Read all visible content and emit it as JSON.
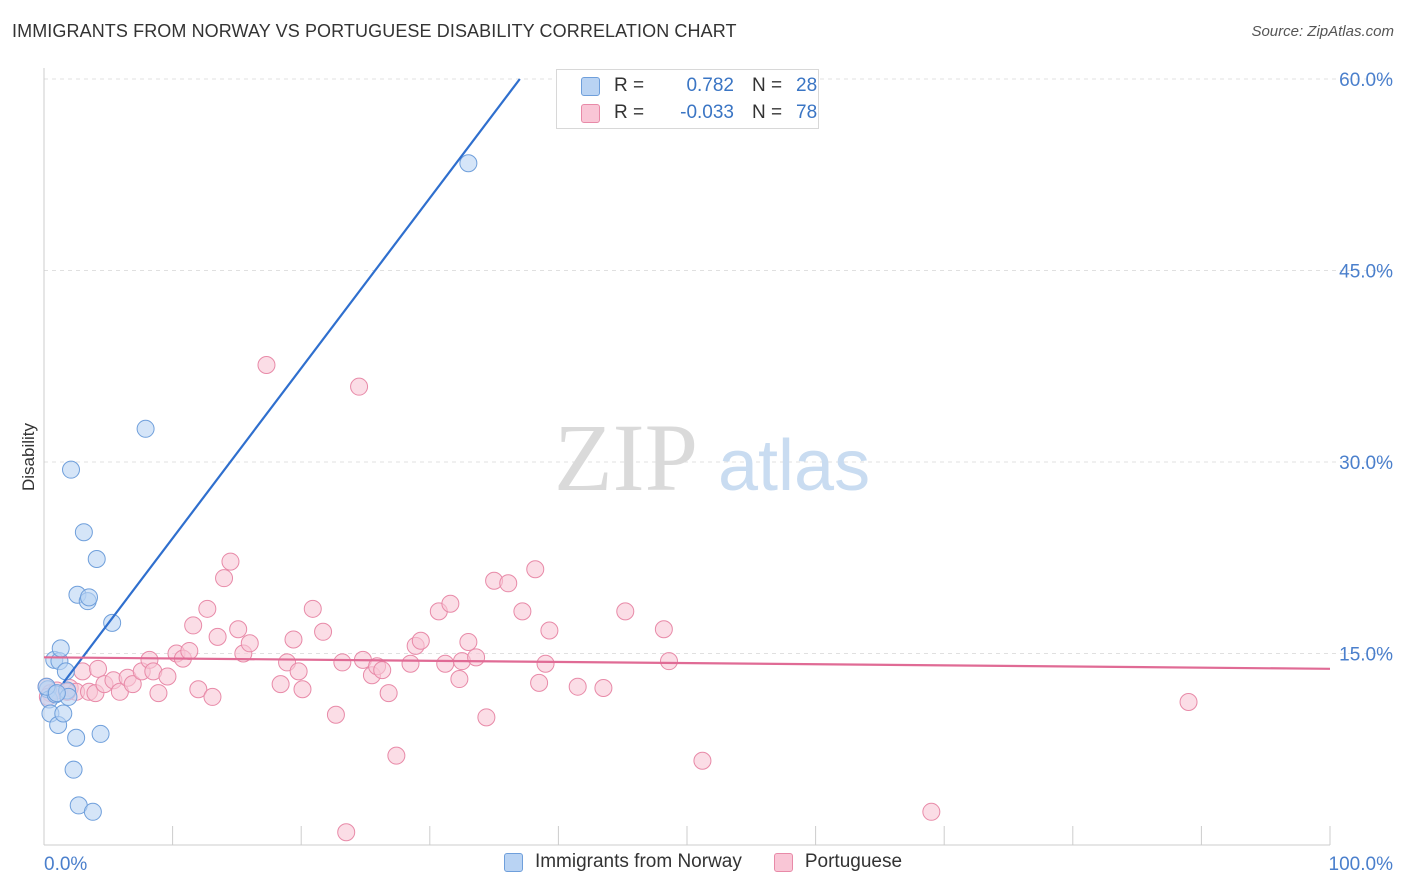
{
  "title": "IMMIGRANTS FROM NORWAY VS PORTUGUESE DISABILITY CORRELATION CHART",
  "source": "Source: ZipAtlas.com",
  "colors": {
    "blue_fill": "#b9d3f3",
    "blue_stroke": "#6f9fdb",
    "blue_line": "#2f6fce",
    "pink_fill": "#f9c6d6",
    "pink_stroke": "#e88aa8",
    "pink_line": "#e06b95",
    "axis_label": "#4a7fcc",
    "grid": "#e0e0e0"
  },
  "stats": {
    "r_label": "R =",
    "n_label": "N =",
    "norway": {
      "r": "0.782",
      "n": "28"
    },
    "portuguese": {
      "r": "-0.033",
      "n": "78"
    }
  },
  "legend": {
    "norway": "Immigrants from Norway",
    "portuguese": "Portuguese"
  },
  "chart_data": {
    "type": "scatter",
    "title": "IMMIGRANTS FROM NORWAY VS PORTUGUESE DISABILITY CORRELATION CHART",
    "xlabel": "",
    "ylabel": "Disability",
    "xlim": [
      0,
      100
    ],
    "ylim": [
      0,
      60
    ],
    "x_tick_labels": [
      "0.0%",
      "100.0%"
    ],
    "y_ticks": [
      15,
      30,
      45,
      60
    ],
    "y_tick_labels": [
      "15.0%",
      "30.0%",
      "45.0%",
      "60.0%"
    ],
    "watermark": {
      "zip": "ZIP",
      "atlas": "atlas"
    },
    "series": [
      {
        "name": "Immigrants from Norway",
        "points": [
          [
            0.3,
            12.2
          ],
          [
            0.4,
            11.4
          ],
          [
            0.5,
            10.3
          ],
          [
            0.8,
            14.5
          ],
          [
            0.9,
            11.8
          ],
          [
            1.1,
            9.4
          ],
          [
            1.2,
            14.4
          ],
          [
            1.3,
            15.4
          ],
          [
            1.5,
            10.3
          ],
          [
            1.7,
            13.6
          ],
          [
            1.8,
            12.1
          ],
          [
            1.9,
            11.6
          ],
          [
            2.1,
            29.4
          ],
          [
            2.3,
            5.9
          ],
          [
            2.5,
            8.4
          ],
          [
            2.6,
            19.6
          ],
          [
            2.7,
            3.1
          ],
          [
            3.1,
            24.5
          ],
          [
            3.4,
            19.1
          ],
          [
            3.5,
            19.4
          ],
          [
            3.8,
            2.6
          ],
          [
            4.1,
            22.4
          ],
          [
            4.4,
            8.7
          ],
          [
            5.3,
            17.4
          ],
          [
            7.9,
            32.6
          ],
          [
            33.0,
            53.4
          ],
          [
            0.2,
            12.4
          ],
          [
            1.0,
            11.9
          ]
        ],
        "trend": [
          [
            1.5,
            12.7
          ],
          [
            37.0,
            60.0
          ]
        ]
      },
      {
        "name": "Portuguese",
        "points": [
          [
            0.2,
            12.4
          ],
          [
            0.5,
            11.9
          ],
          [
            1.0,
            12.1
          ],
          [
            2.0,
            12.3
          ],
          [
            2.5,
            12.0
          ],
          [
            3.0,
            13.6
          ],
          [
            3.5,
            12.0
          ],
          [
            4.0,
            11.9
          ],
          [
            4.2,
            13.8
          ],
          [
            4.7,
            12.6
          ],
          [
            5.4,
            12.9
          ],
          [
            5.9,
            12.0
          ],
          [
            6.5,
            13.1
          ],
          [
            6.9,
            12.6
          ],
          [
            7.6,
            13.6
          ],
          [
            8.2,
            14.5
          ],
          [
            8.5,
            13.6
          ],
          [
            8.9,
            11.9
          ],
          [
            9.6,
            13.2
          ],
          [
            10.3,
            15.0
          ],
          [
            10.8,
            14.6
          ],
          [
            11.3,
            15.2
          ],
          [
            11.6,
            17.2
          ],
          [
            12.0,
            12.2
          ],
          [
            12.7,
            18.5
          ],
          [
            13.1,
            11.6
          ],
          [
            13.5,
            16.3
          ],
          [
            14.0,
            20.9
          ],
          [
            14.5,
            22.2
          ],
          [
            15.1,
            16.9
          ],
          [
            15.5,
            15.0
          ],
          [
            16.0,
            15.8
          ],
          [
            17.3,
            37.6
          ],
          [
            18.4,
            12.6
          ],
          [
            18.9,
            14.3
          ],
          [
            19.4,
            16.1
          ],
          [
            19.8,
            13.6
          ],
          [
            20.1,
            12.2
          ],
          [
            20.9,
            18.5
          ],
          [
            21.7,
            16.7
          ],
          [
            22.7,
            10.2
          ],
          [
            23.2,
            14.3
          ],
          [
            23.5,
            1.0
          ],
          [
            24.5,
            35.9
          ],
          [
            24.8,
            14.5
          ],
          [
            25.5,
            13.3
          ],
          [
            25.9,
            14.0
          ],
          [
            26.3,
            13.7
          ],
          [
            26.8,
            11.9
          ],
          [
            27.4,
            7.0
          ],
          [
            28.5,
            14.2
          ],
          [
            28.9,
            15.6
          ],
          [
            29.3,
            16.0
          ],
          [
            30.7,
            18.3
          ],
          [
            31.2,
            14.2
          ],
          [
            31.6,
            18.9
          ],
          [
            32.3,
            13.0
          ],
          [
            32.5,
            14.4
          ],
          [
            33.0,
            15.9
          ],
          [
            33.6,
            14.7
          ],
          [
            34.4,
            10.0
          ],
          [
            35.0,
            20.7
          ],
          [
            36.1,
            20.5
          ],
          [
            37.2,
            18.3
          ],
          [
            38.2,
            21.6
          ],
          [
            38.5,
            12.7
          ],
          [
            39.0,
            14.2
          ],
          [
            39.3,
            16.8
          ],
          [
            41.5,
            12.4
          ],
          [
            43.5,
            12.3
          ],
          [
            45.2,
            18.3
          ],
          [
            48.2,
            16.9
          ],
          [
            48.6,
            14.4
          ],
          [
            51.2,
            6.6
          ],
          [
            69.0,
            2.6
          ],
          [
            89.0,
            11.2
          ],
          [
            0.3,
            11.6
          ],
          [
            1.8,
            12.0
          ]
        ],
        "trend": [
          [
            0.0,
            14.7
          ],
          [
            100.0,
            13.8
          ]
        ]
      }
    ]
  }
}
